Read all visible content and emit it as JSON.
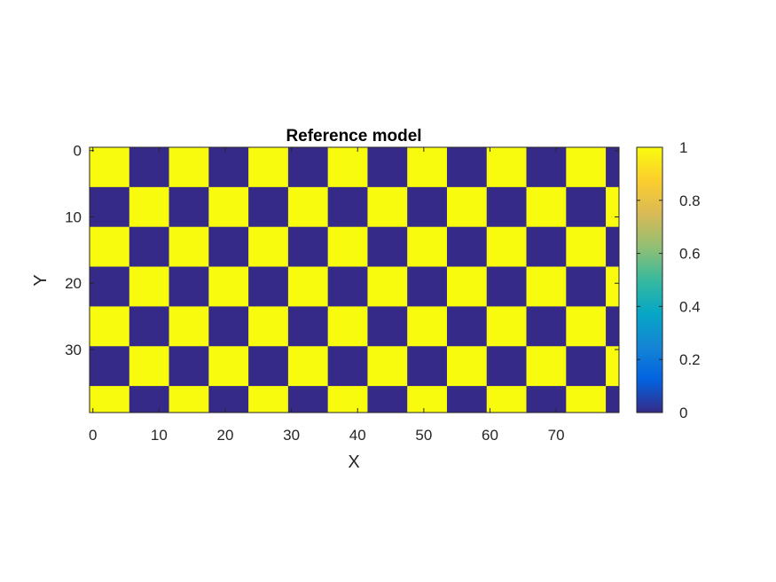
{
  "chart_data": {
    "type": "heatmap",
    "title": "Reference model",
    "xlabel": "X",
    "ylabel": "Y",
    "x_ticks": [
      0,
      10,
      20,
      30,
      40,
      50,
      60,
      70
    ],
    "y_ticks": [
      0,
      10,
      20,
      30
    ],
    "xlim": [
      -0.5,
      79.5
    ],
    "ylim": [
      -0.5,
      39.5
    ],
    "y_direction": "reversed",
    "grid": "Nx=80, Ny=40",
    "pattern": "checkerboard with 6x6 squares; value 1 at top-left (x=0..5, y=0..5), alternating 0 and 1",
    "square_size": 6,
    "values_range": [
      0,
      1
    ],
    "colorbar": {
      "ticks": [
        0,
        0.2,
        0.4,
        0.6,
        0.8,
        1
      ],
      "labels": [
        "0",
        "0.2",
        "0.4",
        "0.6",
        "0.8",
        "1"
      ],
      "colormap": "parula",
      "placement": "right"
    },
    "colors": {
      "low": "#352a87",
      "high": "#f9fb0e"
    }
  }
}
